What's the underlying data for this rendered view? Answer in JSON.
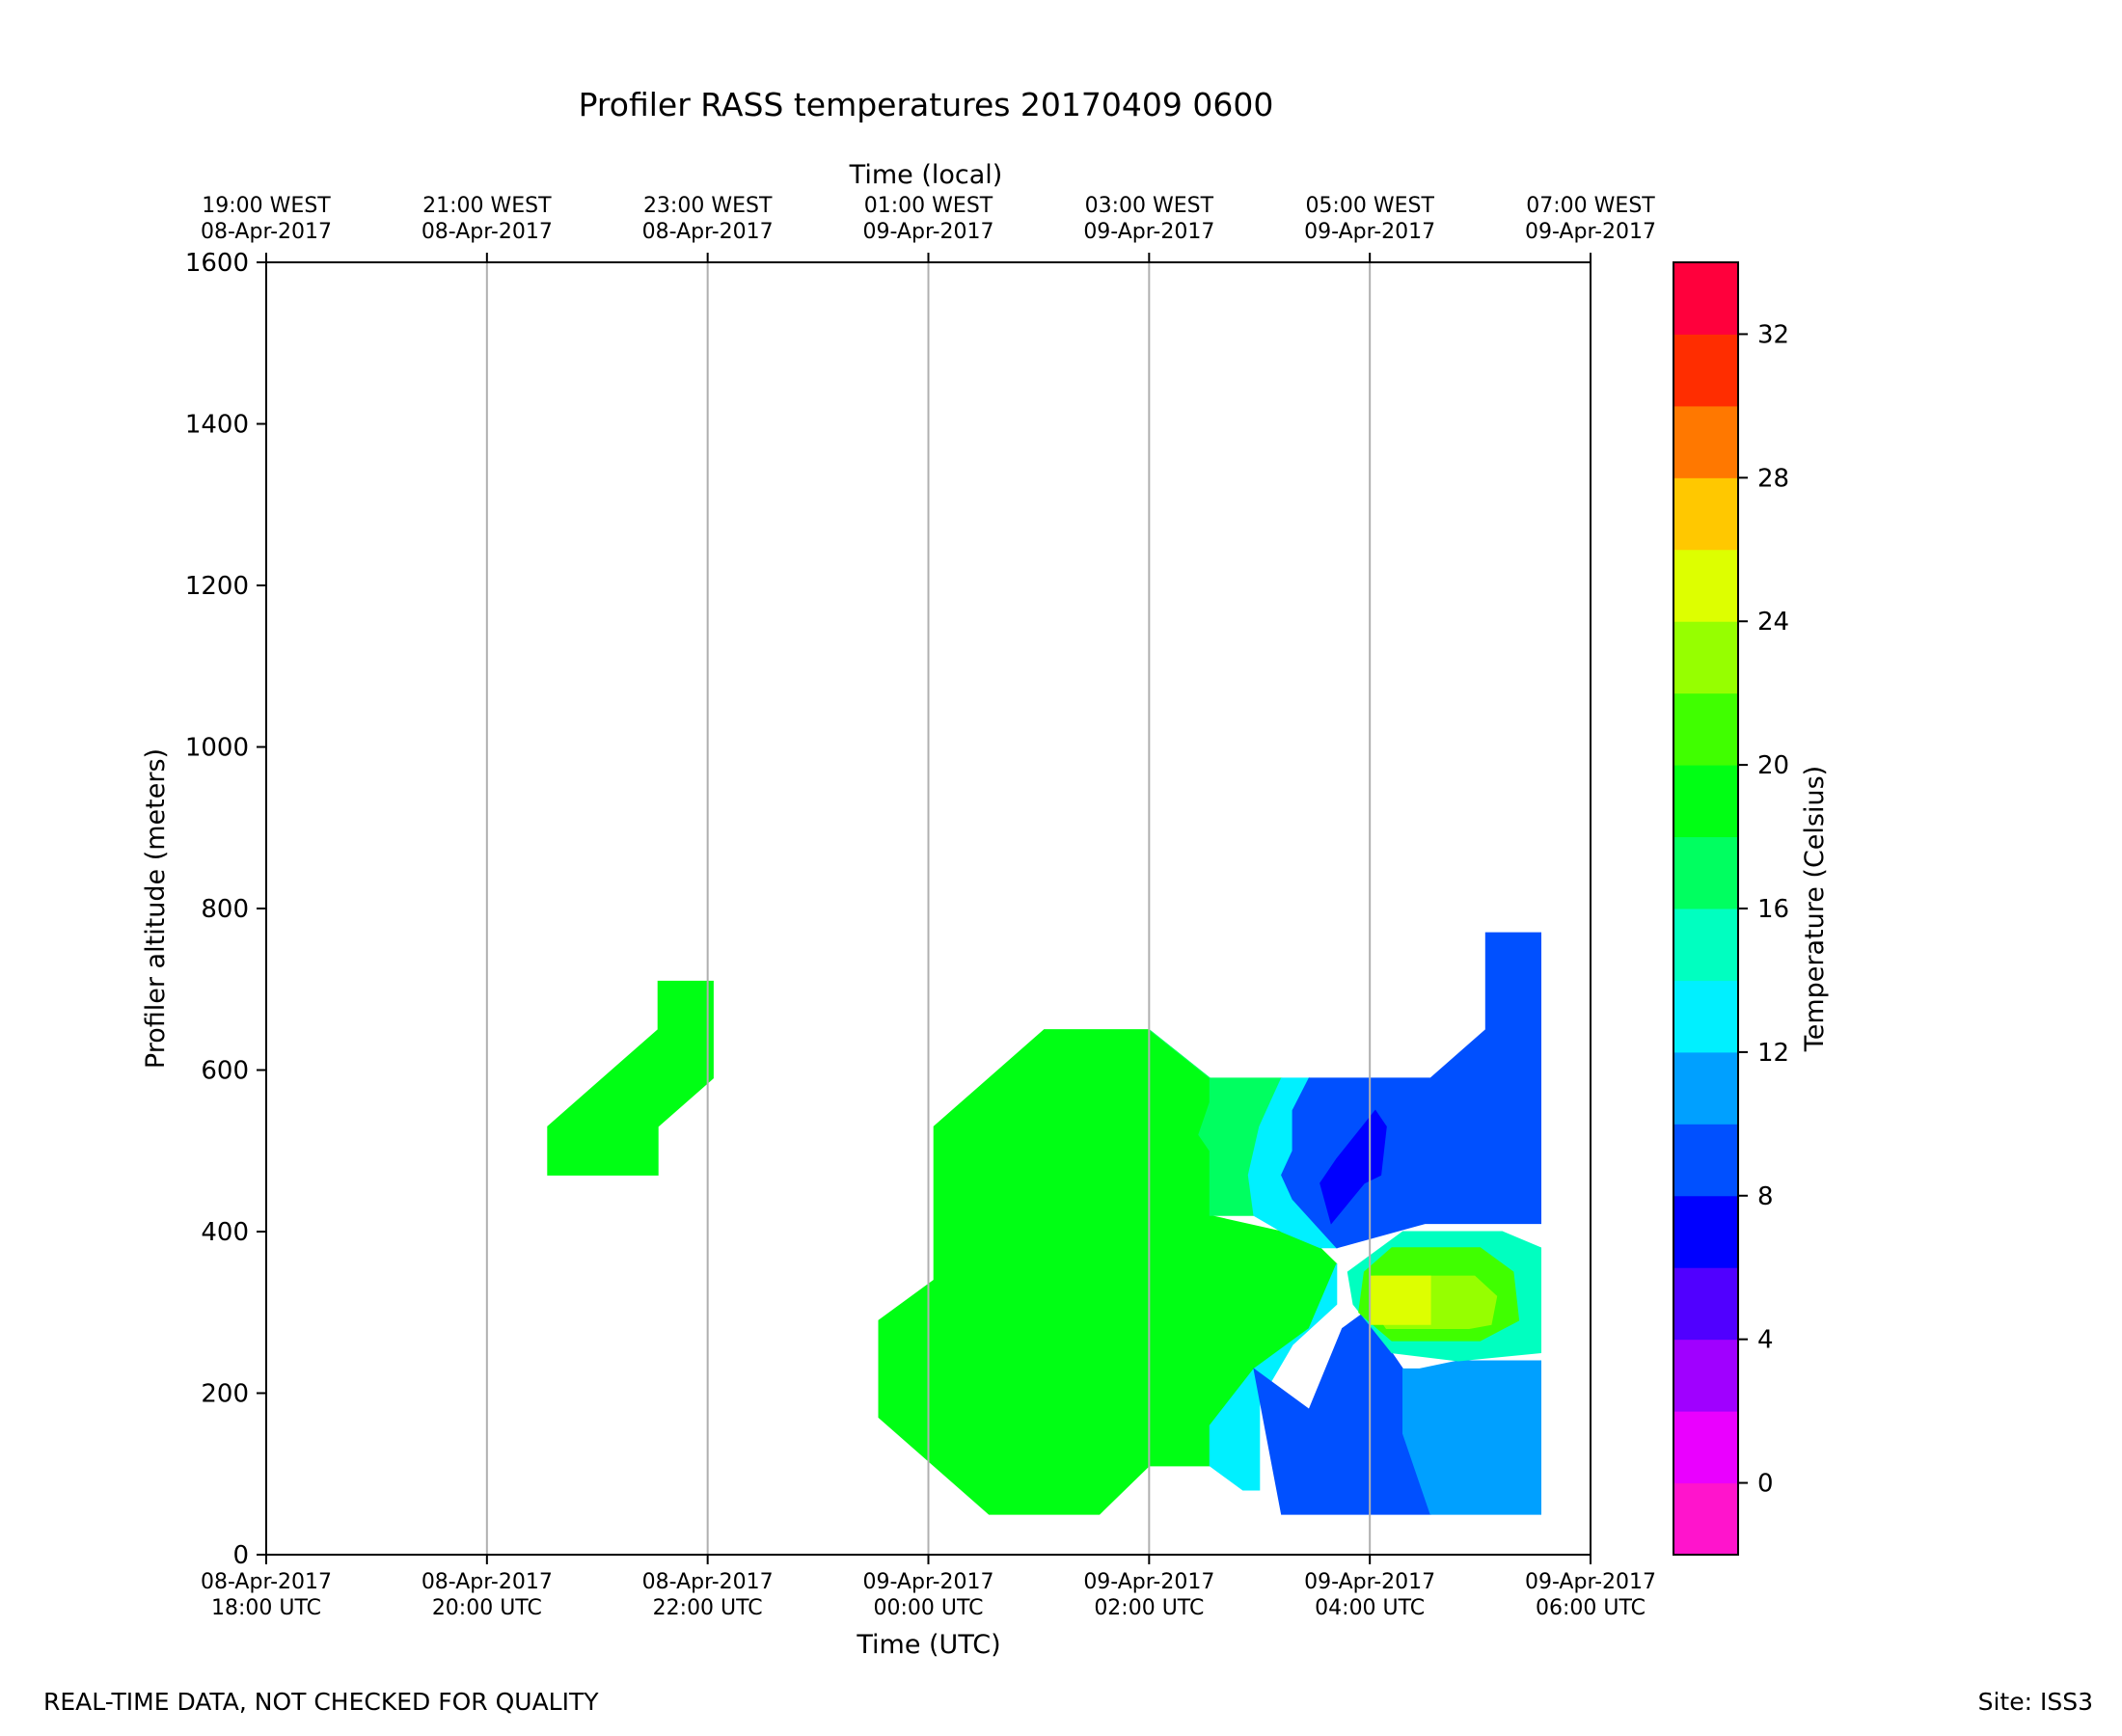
{
  "chart_data": {
    "type": "heatmap",
    "title": "Profiler RASS temperatures 20170409 0600",
    "xlabel": "Time (UTC)",
    "ylabel": "Profiler altitude (meters)",
    "x2label": "Time (local)",
    "xlim_hours": [
      18,
      30
    ],
    "ylim": [
      0,
      1600
    ],
    "grid": "vertical lines at bottom ticks",
    "x_ticks": [
      {
        "hours": 18,
        "utc": [
          "08-Apr-2017",
          "18:00 UTC"
        ],
        "local": [
          "19:00 WEST",
          "08-Apr-2017"
        ]
      },
      {
        "hours": 20,
        "utc": [
          "08-Apr-2017",
          "20:00 UTC"
        ],
        "local": [
          "21:00 WEST",
          "08-Apr-2017"
        ]
      },
      {
        "hours": 22,
        "utc": [
          "08-Apr-2017",
          "22:00 UTC"
        ],
        "local": [
          "23:00 WEST",
          "08-Apr-2017"
        ]
      },
      {
        "hours": 24,
        "utc": [
          "09-Apr-2017",
          "00:00 UTC"
        ],
        "local": [
          "01:00 WEST",
          "09-Apr-2017"
        ]
      },
      {
        "hours": 26,
        "utc": [
          "09-Apr-2017",
          "02:00 UTC"
        ],
        "local": [
          "03:00 WEST",
          "09-Apr-2017"
        ]
      },
      {
        "hours": 28,
        "utc": [
          "09-Apr-2017",
          "04:00 UTC"
        ],
        "local": [
          "05:00 WEST",
          "09-Apr-2017"
        ]
      },
      {
        "hours": 30,
        "utc": [
          "09-Apr-2017",
          "06:00 UTC"
        ],
        "local": [
          "07:00 WEST",
          "09-Apr-2017"
        ]
      }
    ],
    "y_ticks": [
      0,
      200,
      400,
      600,
      800,
      1000,
      1200,
      1400,
      1600
    ],
    "colorbar": {
      "label": "Temperature (Celsius)",
      "range": [
        -2,
        34
      ],
      "step": 2,
      "tick_values": [
        0,
        4,
        8,
        12,
        16,
        20,
        24,
        28,
        32
      ],
      "colors": [
        "#ff14cc",
        "#ea00ff",
        "#a000ff",
        "#5000ff",
        "#0000ff",
        "#0050ff",
        "#00a0ff",
        "#00f0ff",
        "#00ffc0",
        "#00ff60",
        "#00ff14",
        "#40ff00",
        "#96ff00",
        "#ddff00",
        "#ffc800",
        "#ff7800",
        "#ff2d00",
        "#ff003c"
      ]
    },
    "regions": [
      {
        "name": "warm-patch-evening",
        "level": 18,
        "points": [
          [
            20.55,
            530
          ],
          [
            21.55,
            650
          ],
          [
            21.55,
            710
          ],
          [
            22.05,
            710
          ],
          [
            22.05,
            590
          ],
          [
            21.55,
            530
          ],
          [
            21.55,
            470
          ],
          [
            20.55,
            470
          ]
        ]
      },
      {
        "name": "main-mass",
        "level": 18,
        "points": [
          [
            24.05,
            530
          ],
          [
            24.05,
            340
          ],
          [
            23.55,
            290
          ],
          [
            23.55,
            170
          ],
          [
            24.55,
            50
          ],
          [
            25.55,
            50
          ],
          [
            26.0,
            110
          ],
          [
            26.55,
            110
          ],
          [
            26.55,
            160
          ],
          [
            26.95,
            230
          ],
          [
            27.45,
            280
          ],
          [
            27.7,
            360
          ],
          [
            27.55,
            380
          ],
          [
            27.2,
            400
          ],
          [
            26.55,
            420
          ],
          [
            26.55,
            500
          ],
          [
            26.45,
            520
          ],
          [
            26.55,
            560
          ],
          [
            26.55,
            590
          ],
          [
            26.0,
            650
          ],
          [
            25.05,
            650
          ]
        ]
      },
      {
        "name": "cool-band",
        "level": 16,
        "points": [
          [
            26.0,
            650
          ],
          [
            26.55,
            590
          ],
          [
            27.2,
            590
          ],
          [
            27.1,
            560
          ],
          [
            27.0,
            530
          ],
          [
            26.9,
            470
          ],
          [
            26.95,
            420
          ],
          [
            26.55,
            420
          ],
          [
            26.55,
            500
          ],
          [
            26.45,
            520
          ],
          [
            26.55,
            560
          ],
          [
            26.55,
            590
          ]
        ]
      },
      {
        "name": "transition-cyan",
        "level": 12,
        "points": [
          [
            27.2,
            590
          ],
          [
            27.45,
            590
          ],
          [
            27.3,
            550
          ],
          [
            27.3,
            500
          ],
          [
            27.2,
            470
          ],
          [
            27.3,
            440
          ],
          [
            27.7,
            380
          ],
          [
            27.55,
            380
          ],
          [
            27.2,
            400
          ],
          [
            26.95,
            420
          ],
          [
            26.9,
            470
          ],
          [
            27.0,
            530
          ],
          [
            27.1,
            560
          ]
        ]
      },
      {
        "name": "transition-cyan-low",
        "level": 12,
        "points": [
          [
            26.55,
            160
          ],
          [
            26.55,
            110
          ],
          [
            26.85,
            80
          ],
          [
            27.0,
            80
          ],
          [
            27.0,
            190
          ],
          [
            27.3,
            260
          ],
          [
            27.7,
            310
          ],
          [
            27.7,
            360
          ],
          [
            27.45,
            280
          ],
          [
            26.95,
            230
          ]
        ]
      },
      {
        "name": "upper-blue",
        "level": 8,
        "points": [
          [
            27.45,
            590
          ],
          [
            28.55,
            590
          ],
          [
            29.05,
            650
          ],
          [
            29.05,
            770
          ],
          [
            29.55,
            770
          ],
          [
            29.55,
            410
          ],
          [
            28.5,
            410
          ],
          [
            27.7,
            380
          ],
          [
            27.3,
            440
          ],
          [
            27.2,
            470
          ],
          [
            27.3,
            500
          ],
          [
            27.3,
            550
          ]
        ]
      },
      {
        "name": "upper-core",
        "level": 6,
        "points": [
          [
            27.55,
            460
          ],
          [
            27.7,
            490
          ],
          [
            28.05,
            550
          ],
          [
            28.15,
            530
          ],
          [
            28.1,
            470
          ],
          [
            27.95,
            460
          ],
          [
            27.65,
            410
          ]
        ]
      },
      {
        "name": "lower-blue",
        "level": 8,
        "points": [
          [
            26.95,
            230
          ],
          [
            27.2,
            50
          ],
          [
            28.55,
            50
          ],
          [
            28.3,
            150
          ],
          [
            28.3,
            230
          ],
          [
            27.95,
            300
          ],
          [
            27.75,
            280
          ],
          [
            27.45,
            180
          ]
        ]
      },
      {
        "name": "lower-mid",
        "level": 10,
        "points": [
          [
            28.3,
            230
          ],
          [
            28.3,
            150
          ],
          [
            28.55,
            50
          ],
          [
            29.55,
            50
          ],
          [
            29.55,
            240
          ],
          [
            28.8,
            240
          ],
          [
            28.45,
            230
          ]
        ]
      },
      {
        "name": "warm-tongue-outer",
        "level": 14,
        "points": [
          [
            27.8,
            350
          ],
          [
            28.3,
            400
          ],
          [
            29.2,
            400
          ],
          [
            29.55,
            380
          ],
          [
            29.55,
            250
          ],
          [
            28.8,
            240
          ],
          [
            28.2,
            250
          ],
          [
            27.85,
            310
          ]
        ]
      },
      {
        "name": "warm-tongue",
        "level": 20,
        "points": [
          [
            27.95,
            350
          ],
          [
            28.2,
            380
          ],
          [
            29.0,
            380
          ],
          [
            29.3,
            350
          ],
          [
            29.35,
            290
          ],
          [
            29.0,
            265
          ],
          [
            28.2,
            265
          ],
          [
            27.9,
            300
          ]
        ]
      },
      {
        "name": "warm-tongue-inner",
        "level": 22,
        "points": [
          [
            28.05,
            345
          ],
          [
            28.95,
            345
          ],
          [
            29.15,
            320
          ],
          [
            29.1,
            285
          ],
          [
            28.9,
            280
          ],
          [
            28.15,
            280
          ],
          [
            28.05,
            300
          ]
        ]
      },
      {
        "name": "warm-core",
        "level": 24,
        "points": [
          [
            28.0,
            345
          ],
          [
            28.55,
            345
          ],
          [
            28.55,
            285
          ],
          [
            28.0,
            285
          ]
        ]
      }
    ]
  },
  "footer": {
    "note": "REAL-TIME DATA, NOT CHECKED FOR QUALITY",
    "site": "Site: ISS3"
  }
}
